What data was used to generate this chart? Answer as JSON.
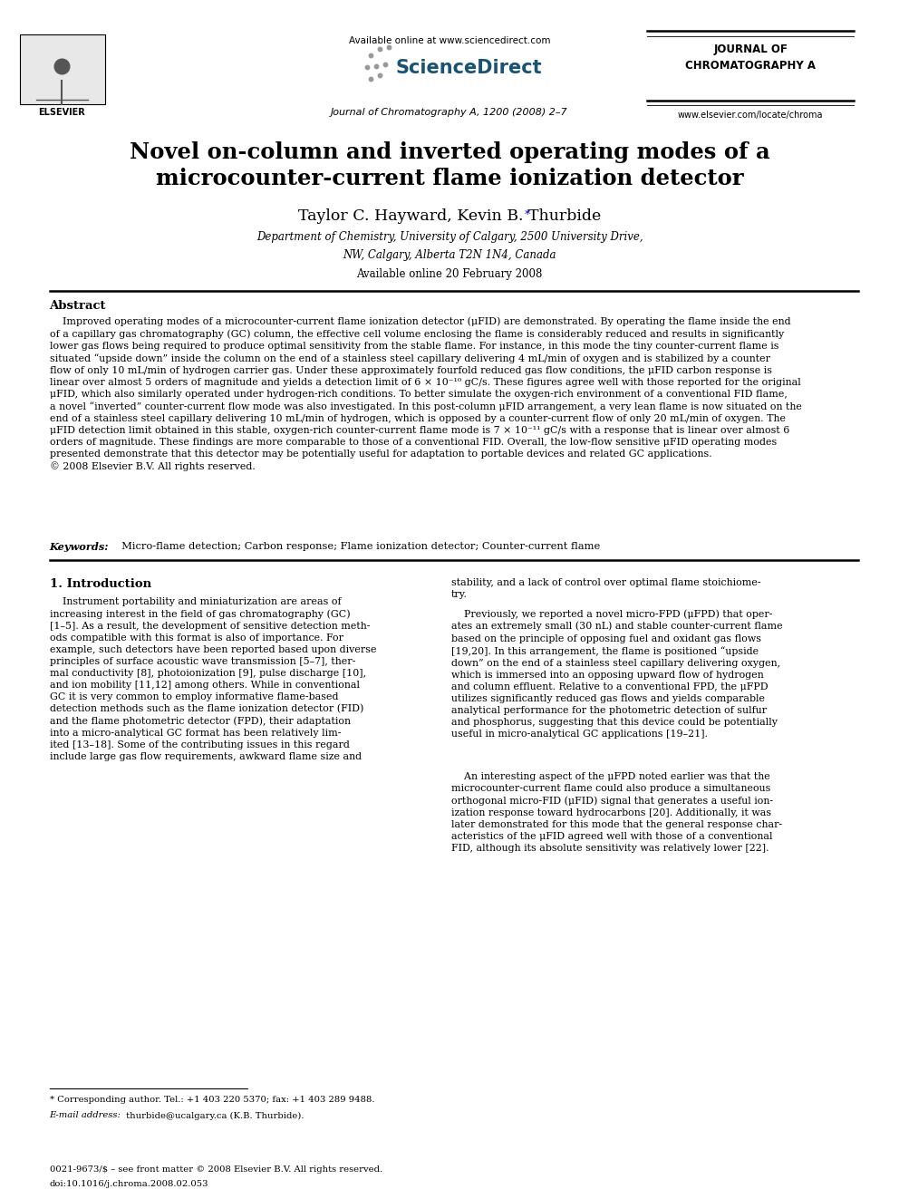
{
  "page_width": 9.92,
  "page_height": 13.23,
  "bg_color": "#ffffff",
  "header_available": "Available online at www.sciencedirect.com",
  "header_journal": "Journal of Chromatography A, 1200 (2008) 2–7",
  "journal_right_line1": "JOURNAL OF",
  "journal_right_line2": "CHROMATOGRAPHY A",
  "website": "www.elsevier.com/locate/chroma",
  "elsevier_label": "ELSEVIER",
  "sciencedirect_label": "ScienceDirect",
  "title_line1": "Novel on-column and inverted operating modes of a",
  "title_line2": "microcounter-current flame ionization detector",
  "authors_main": "Taylor C. Hayward, Kevin B. Thurbide",
  "authors_star": "*",
  "affiliation1": "Department of Chemistry, University of Calgary, 2500 University Drive,",
  "affiliation2": "NW, Calgary, Alberta T2N 1N4, Canada",
  "available_date": "Available online 20 February 2008",
  "abstract_heading": "Abstract",
  "abstract_text": "    Improved operating modes of a microcounter-current flame ionization detector (μFID) are demonstrated. By operating the flame inside the end\nof a capillary gas chromatography (GC) column, the effective cell volume enclosing the flame is considerably reduced and results in significantly\nlower gas flows being required to produce optimal sensitivity from the stable flame. For instance, in this mode the tiny counter-current flame is\nsituated “upside down” inside the column on the end of a stainless steel capillary delivering 4 mL/min of oxygen and is stabilized by a counter\nflow of only 10 mL/min of hydrogen carrier gas. Under these approximately fourfold reduced gas flow conditions, the μFID carbon response is\nlinear over almost 5 orders of magnitude and yields a detection limit of 6 × 10⁻¹⁰ gC/s. These figures agree well with those reported for the original\nμFID, which also similarly operated under hydrogen-rich conditions. To better simulate the oxygen-rich environment of a conventional FID flame,\na novel “inverted” counter-current flow mode was also investigated. In this post-column μFID arrangement, a very lean flame is now situated on the\nend of a stainless steel capillary delivering 10 mL/min of hydrogen, which is opposed by a counter-current flow of only 20 mL/min of oxygen. The\nμFID detection limit obtained in this stable, oxygen-rich counter-current flame mode is 7 × 10⁻¹¹ gC/s with a response that is linear over almost 6\norders of magnitude. These findings are more comparable to those of a conventional FID. Overall, the low-flow sensitive μFID operating modes\npresented demonstrate that this detector may be potentially useful for adaptation to portable devices and related GC applications.\n© 2008 Elsevier B.V. All rights reserved.",
  "keywords_label": "Keywords:",
  "keywords_text": "  Micro-flame detection; Carbon response; Flame ionization detector; Counter-current flame",
  "section1_heading": "1. Introduction",
  "col1_indent_para": "    Instrument portability and miniaturization are areas of\nincreasing interest in the field of gas chromatography (GC)\n[1–5]. As a result, the development of sensitive detection meth-\nods compatible with this format is also of importance. For\nexample, such detectors have been reported based upon diverse\nprinciples of surface acoustic wave transmission [5–7], ther-\nmal conductivity [8], photoionization [9], pulse discharge [10],\nand ion mobility [11,12] among others. While in conventional\nGC it is very common to employ informative flame-based\ndetection methods such as the flame ionization detector (FID)\nand the flame photometric detector (FPD), their adaptation\ninto a micro-analytical GC format has been relatively lim-\nited [13–18]. Some of the contributing issues in this regard\ninclude large gas flow requirements, awkward flame size and",
  "col2_para1": "stability, and a lack of control over optimal flame stoichiome-\ntry.",
  "col2_para2": "    Previously, we reported a novel micro-FPD (μFPD) that oper-\nates an extremely small (30 nL) and stable counter-current flame\nbased on the principle of opposing fuel and oxidant gas flows\n[19,20]. In this arrangement, the flame is positioned “upside\ndown” on the end of a stainless steel capillary delivering oxygen,\nwhich is immersed into an opposing upward flow of hydrogen\nand column effluent. Relative to a conventional FPD, the μFPD\nutilizes significantly reduced gas flows and yields comparable\nanalytical performance for the photometric detection of sulfur\nand phosphorus, suggesting that this device could be potentially\nuseful in micro-analytical GC applications [19–21].",
  "col2_para3": "    An interesting aspect of the μFPD noted earlier was that the\nmicrocounter-current flame could also produce a simultaneous\northogonal micro-FID (μFID) signal that generates a useful ion-\nization response toward hydrocarbons [20]. Additionally, it was\nlater demonstrated for this mode that the general response char-\nacteristics of the μFID agreed well with those of a conventional\nFID, although its absolute sensitivity was relatively lower [22].",
  "footnote_line": "* Corresponding author. Tel.: +1 403 220 5370; fax: +1 403 289 9488.",
  "footnote_email_label": "E-mail address:",
  "footnote_email": " thurbide@ucalgary.ca (K.B. Thurbide).",
  "footer_copy": "0021-9673/$ – see front matter © 2008 Elsevier B.V. All rights reserved.",
  "footer_doi": "doi:10.1016/j.chroma.2008.02.053"
}
